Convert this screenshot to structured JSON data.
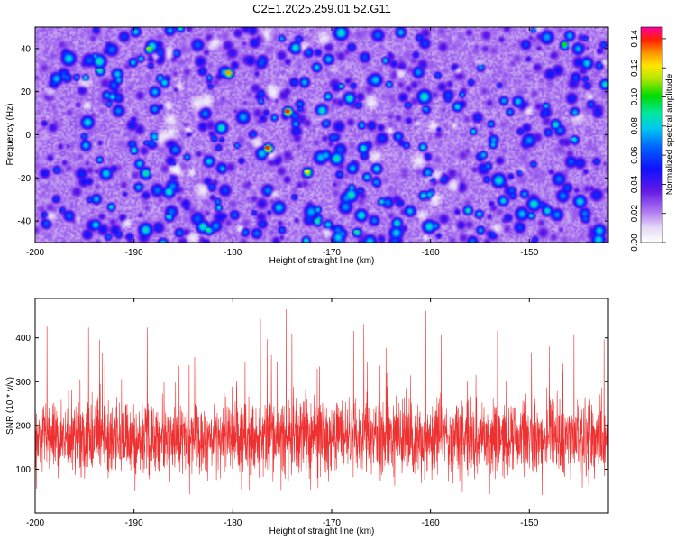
{
  "chart_data": [
    {
      "type": "heatmap",
      "title": "C2E1.2025.259.01.52.G11",
      "xlabel": "Height of straight line (km)",
      "ylabel": "Frequency (Hz)",
      "xlim": [
        -200,
        -142
      ],
      "ylim": [
        -50,
        50
      ],
      "xticks": [
        -200,
        -190,
        -180,
        -170,
        -160,
        -150
      ],
      "yticks": [
        -40,
        -20,
        0,
        20,
        40
      ],
      "colorbar": {
        "label": "Normalized spectral amplitude",
        "range": [
          0,
          0.148
        ],
        "ticks": [
          "0.00",
          "0.02",
          "0.04",
          "0.06",
          "0.08",
          "0.10",
          "0.12",
          "0.14"
        ]
      },
      "peaks": [
        {
          "x": -176.5,
          "y": -6,
          "value": 0.14
        },
        {
          "x": -174.5,
          "y": 11,
          "value": 0.14
        },
        {
          "x": -180.5,
          "y": 29,
          "value": 0.13
        },
        {
          "x": -172.5,
          "y": -17,
          "value": 0.12
        },
        {
          "x": -188.5,
          "y": 40,
          "value": 0.11
        },
        {
          "x": -146.5,
          "y": 42,
          "value": 0.1
        },
        {
          "x": -193.5,
          "y": 30,
          "value": 0.09
        },
        {
          "x": -171.5,
          "y": -40,
          "value": 0.09
        },
        {
          "x": -167.5,
          "y": -45,
          "value": 0.09
        },
        {
          "x": -182.5,
          "y": -44,
          "value": 0.09
        },
        {
          "x": -186.5,
          "y": -38,
          "value": 0.08
        },
        {
          "x": -145.5,
          "y": -2,
          "value": 0.08
        },
        {
          "x": -165.5,
          "y": -22,
          "value": 0.07
        },
        {
          "x": -160.5,
          "y": 12,
          "value": 0.07
        }
      ]
    },
    {
      "type": "line",
      "title": "",
      "xlabel": "Height of straight line (km)",
      "ylabel": "SNR (10 * v/v)",
      "xlim": [
        -200,
        -142
      ],
      "ylim": [
        0,
        490
      ],
      "xticks": [
        -200,
        -190,
        -180,
        -170,
        -160,
        -150
      ],
      "yticks": [
        100,
        200,
        300,
        400
      ],
      "series": [
        {
          "name": "SNR",
          "color": "#ee3030",
          "x_step": 0.02,
          "mean": 170,
          "min": 10,
          "max": 490
        }
      ]
    }
  ]
}
